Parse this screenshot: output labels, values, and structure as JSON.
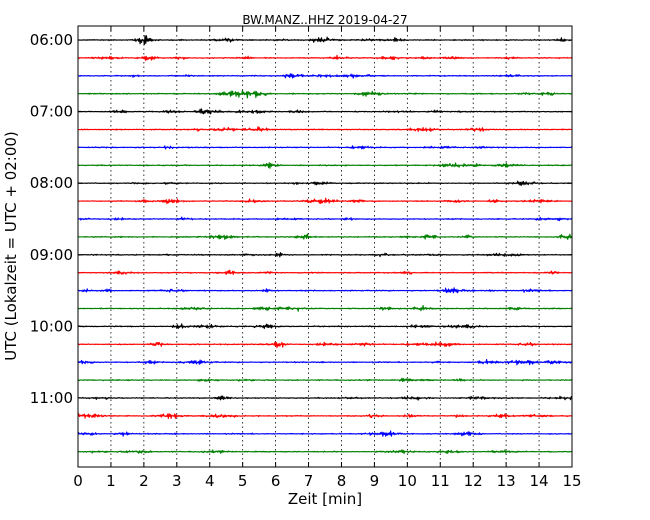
{
  "chart_data": {
    "type": "line",
    "title": "BW.MANZ..HHZ 2019-04-27",
    "xlabel": "Zeit  [min]",
    "ylabel": "UTC (Lokalzeit = UTC + 02:00)",
    "xlim": [
      0,
      15
    ],
    "x_ticks": [
      "0",
      "1",
      "2",
      "3",
      "4",
      "5",
      "6",
      "7",
      "8",
      "9",
      "10",
      "11",
      "12",
      "13",
      "14",
      "15"
    ],
    "y_ticks": [
      "06:00",
      "07:00",
      "08:00",
      "09:00",
      "10:00",
      "11:00"
    ],
    "trace_interval_minutes": 15,
    "start_time": "06:00",
    "trace_count": 24,
    "trace_colors": [
      "#000000",
      "#ff0000",
      "#0000ff",
      "#008000"
    ],
    "grid": {
      "vertical_dotted": true
    }
  }
}
